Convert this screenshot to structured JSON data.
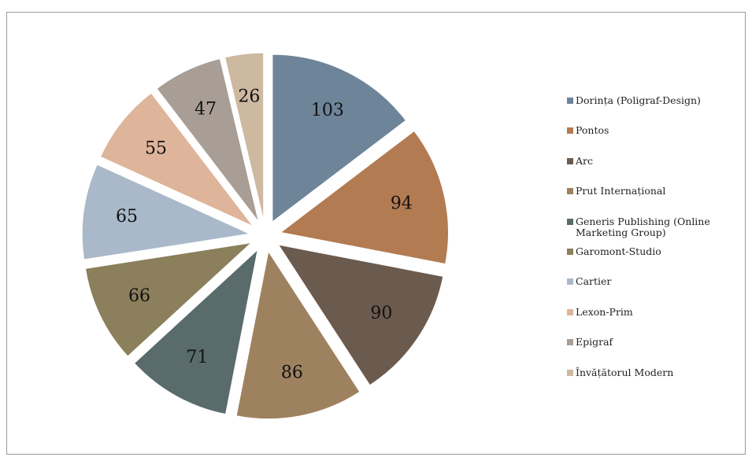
{
  "chart_data": {
    "type": "pie",
    "categories": [
      "Dorința (Poligraf-Design)",
      "Pontos",
      "Arc",
      "Prut Internațional",
      "Generis Publishing (Online Marketing Group)",
      "Garomont-Studio",
      "Cartier",
      "Lexon-Prim",
      "Epigraf",
      "Învățătorul Modern"
    ],
    "values": [
      103,
      94,
      90,
      86,
      71,
      66,
      65,
      55,
      47,
      26
    ],
    "colors": [
      "#6e8499",
      "#b37b51",
      "#6b5a4e",
      "#9e8260",
      "#596b6b",
      "#8b7f5c",
      "#a9b9c9",
      "#deb49a",
      "#a89e95",
      "#cdb8a0"
    ],
    "legend": "right"
  }
}
